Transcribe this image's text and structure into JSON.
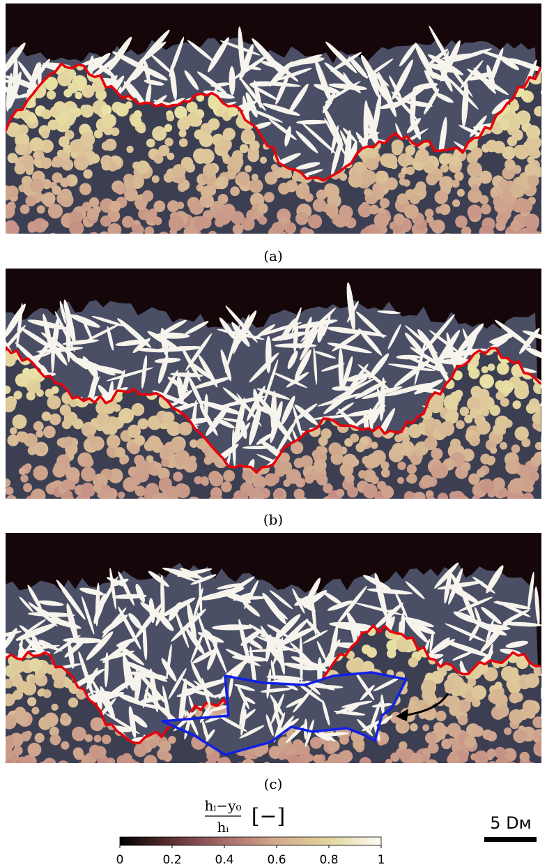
{
  "panels": [
    {
      "label": "(a)"
    },
    {
      "label": "(b)"
    },
    {
      "label": "(c)"
    }
  ],
  "colorbar": {
    "label_numerator": "hᵢ−y₀",
    "label_denominator": "hᵢ",
    "label_unit": "[−]",
    "lim": [
      0,
      1
    ],
    "ticks": [
      0,
      0.2,
      0.4,
      0.6,
      0.8,
      1
    ]
  },
  "scale_bar": {
    "label": "5 Dᴍ"
  }
}
